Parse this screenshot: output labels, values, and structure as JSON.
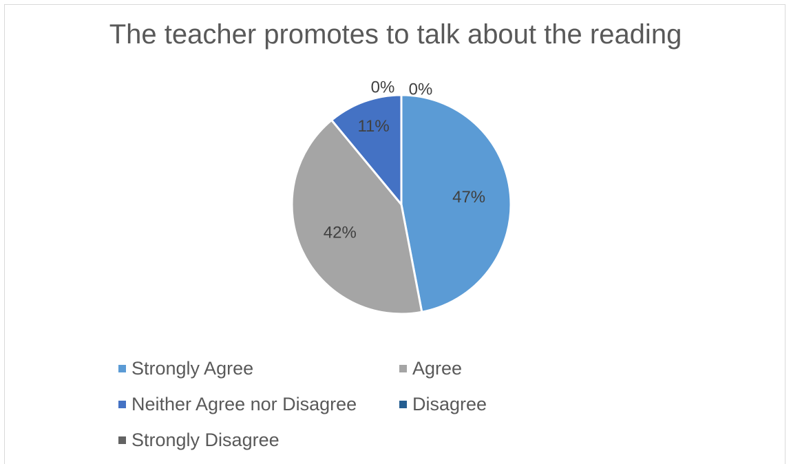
{
  "chart_data": {
    "type": "pie",
    "title": "The teacher promotes to talk about the reading",
    "categories": [
      "Strongly Agree",
      "Agree",
      "Neither Agree nor Disagree",
      "Disagree",
      "Strongly Disagree"
    ],
    "values": [
      47,
      42,
      11,
      0,
      0
    ],
    "data_labels": [
      "47%",
      "42%",
      "11%",
      "0%",
      "0%"
    ],
    "colors": [
      "#5b9bd5",
      "#a5a5a5",
      "#4472c4",
      "#255e91",
      "#636363"
    ],
    "legend_position": "bottom",
    "start_angle_deg": 0,
    "direction": "clockwise"
  }
}
